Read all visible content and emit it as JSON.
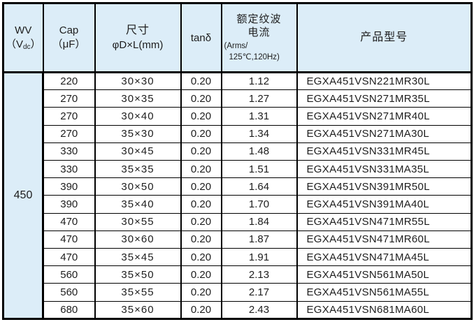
{
  "colors": {
    "header_bg": "#dcedf8",
    "border": "#000000",
    "text": "#1d1d1d",
    "page_bg": "#ffffff"
  },
  "table": {
    "header": {
      "wv": {
        "title": "WV",
        "unit_open": "（V",
        "unit_sub": "dc",
        "unit_close": "）"
      },
      "cap": {
        "title": "Cap",
        "unit": "（μF）"
      },
      "size": {
        "title": "尺寸",
        "unit": "φD×L(mm)"
      },
      "tan_delta": {
        "title": "tanδ"
      },
      "ripple": {
        "title_line1": "额定纹波",
        "title_line2": "电流",
        "unit_line1": "(Arms/",
        "unit_line2": "125℃,120Hz)"
      },
      "model": {
        "title": "产品型号"
      }
    },
    "wv_value": "450",
    "rows": [
      {
        "cap": "220",
        "size": "30×30",
        "tan_delta": "0.20",
        "ripple": "1.12",
        "model": "EGXA451VSN221MR30L"
      },
      {
        "cap": "270",
        "size": "30×35",
        "tan_delta": "0.20",
        "ripple": "1.27",
        "model": "EGXA451VSN271MR35L"
      },
      {
        "cap": "270",
        "size": "30×40",
        "tan_delta": "0.20",
        "ripple": "1.31",
        "model": "EGXA451VSN271MR40L"
      },
      {
        "cap": "270",
        "size": "35×30",
        "tan_delta": "0.20",
        "ripple": "1.34",
        "model": "EGXA451VSN271MA30L"
      },
      {
        "cap": "330",
        "size": "30×45",
        "tan_delta": "0.20",
        "ripple": "1.48",
        "model": "EGXA451VSN331MR45L"
      },
      {
        "cap": "330",
        "size": "35×35",
        "tan_delta": "0.20",
        "ripple": "1.51",
        "model": "EGXA451VSN331MA35L"
      },
      {
        "cap": "390",
        "size": "30×50",
        "tan_delta": "0.20",
        "ripple": "1.64",
        "model": "EGXA451VSN391MR50L"
      },
      {
        "cap": "390",
        "size": "35×40",
        "tan_delta": "0.20",
        "ripple": "1.70",
        "model": "EGXA451VSN391MA40L"
      },
      {
        "cap": "470",
        "size": "30×55",
        "tan_delta": "0.20",
        "ripple": "1.84",
        "model": "EGXA451VSN471MR55L"
      },
      {
        "cap": "470",
        "size": "30×60",
        "tan_delta": "0.20",
        "ripple": "1.87",
        "model": "EGXA451VSN471MR60L"
      },
      {
        "cap": "470",
        "size": "35×45",
        "tan_delta": "0.20",
        "ripple": "1.91",
        "model": "EGXA451VSN471MA45L"
      },
      {
        "cap": "560",
        "size": "35×50",
        "tan_delta": "0.20",
        "ripple": "2.13",
        "model": "EGXA451VSN561MA50L"
      },
      {
        "cap": "560",
        "size": "35×55",
        "tan_delta": "0.20",
        "ripple": "2.17",
        "model": "EGXA451VSN561MA55L"
      },
      {
        "cap": "680",
        "size": "35×60",
        "tan_delta": "0.20",
        "ripple": "2.43",
        "model": "EGXA451VSN681MA60L"
      }
    ]
  }
}
